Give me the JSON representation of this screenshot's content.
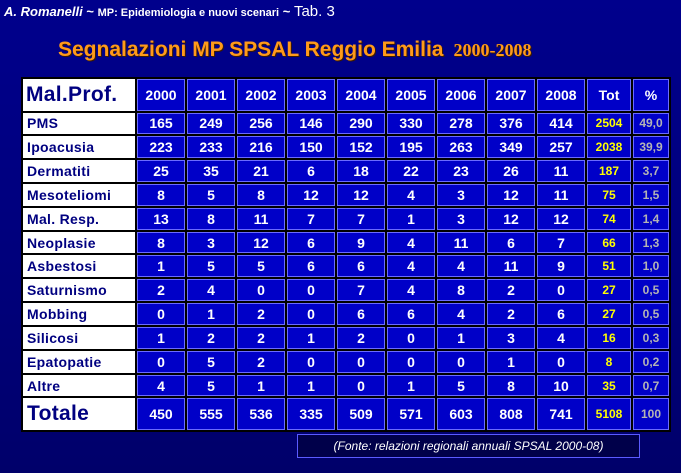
{
  "header": {
    "author": "A. Romanelli",
    "sep1": " ~ ",
    "subtitle": "MP: Epidemiologia  e nuovi scenari",
    "sep2": " ~ ",
    "tab_label": "Tab. 3"
  },
  "title": {
    "main": "Segnalazioni MP SPSAL Reggio Emilia",
    "years": "2000-2008"
  },
  "table": {
    "corner": "Mal.Prof.",
    "years": [
      "2000",
      "2001",
      "2002",
      "2003",
      "2004",
      "2005",
      "2006",
      "2007",
      "2008"
    ],
    "tot_header": "Tot",
    "pct_header": "%",
    "rows": [
      {
        "label": "PMS",
        "values": [
          "165",
          "249",
          "256",
          "146",
          "290",
          "330",
          "278",
          "376",
          "414"
        ],
        "tot": "2504",
        "pct": "49,0"
      },
      {
        "label": "Ipoacusia",
        "values": [
          "223",
          "233",
          "216",
          "150",
          "152",
          "195",
          "263",
          "349",
          "257"
        ],
        "tot": "2038",
        "pct": "39,9"
      },
      {
        "label": "Dermatiti",
        "values": [
          "25",
          "35",
          "21",
          "6",
          "18",
          "22",
          "23",
          "26",
          "11"
        ],
        "tot": "187",
        "pct": "3,7"
      },
      {
        "label": "Mesoteliomi",
        "values": [
          "8",
          "5",
          "8",
          "12",
          "12",
          "4",
          "3",
          "12",
          "11"
        ],
        "tot": "75",
        "pct": "1,5"
      },
      {
        "label": "Mal. Resp.",
        "values": [
          "13",
          "8",
          "11",
          "7",
          "7",
          "1",
          "3",
          "12",
          "12"
        ],
        "tot": "74",
        "pct": "1,4"
      },
      {
        "label": "Neoplasie",
        "values": [
          "8",
          "3",
          "12",
          "6",
          "9",
          "4",
          "11",
          "6",
          "7"
        ],
        "tot": "66",
        "pct": "1,3"
      },
      {
        "label": "Asbestosi",
        "values": [
          "1",
          "5",
          "5",
          "6",
          "6",
          "4",
          "4",
          "11",
          "9"
        ],
        "tot": "51",
        "pct": "1,0"
      },
      {
        "label": "Saturnismo",
        "values": [
          "2",
          "4",
          "0",
          "0",
          "7",
          "4",
          "8",
          "2",
          "0"
        ],
        "tot": "27",
        "pct": "0,5"
      },
      {
        "label": "Mobbing",
        "values": [
          "0",
          "1",
          "2",
          "0",
          "6",
          "6",
          "4",
          "2",
          "6"
        ],
        "tot": "27",
        "pct": "0,5"
      },
      {
        "label": "Silicosi",
        "values": [
          "1",
          "2",
          "2",
          "1",
          "2",
          "0",
          "1",
          "3",
          "4"
        ],
        "tot": "16",
        "pct": "0,3"
      },
      {
        "label": "Epatopatie",
        "values": [
          "0",
          "5",
          "2",
          "0",
          "0",
          "0",
          "0",
          "1",
          "0"
        ],
        "tot": "8",
        "pct": "0,2"
      },
      {
        "label": "Altre",
        "values": [
          "4",
          "5",
          "1",
          "1",
          "0",
          "1",
          "5",
          "8",
          "10"
        ],
        "tot": "35",
        "pct": "0,7"
      }
    ],
    "total": {
      "label": "Totale",
      "values": [
        "450",
        "555",
        "536",
        "335",
        "509",
        "571",
        "603",
        "808",
        "741"
      ],
      "tot": "5108",
      "pct": "100"
    }
  },
  "source": "(Fonte: relazioni regionali annuali SPSAL 2000-08)"
}
